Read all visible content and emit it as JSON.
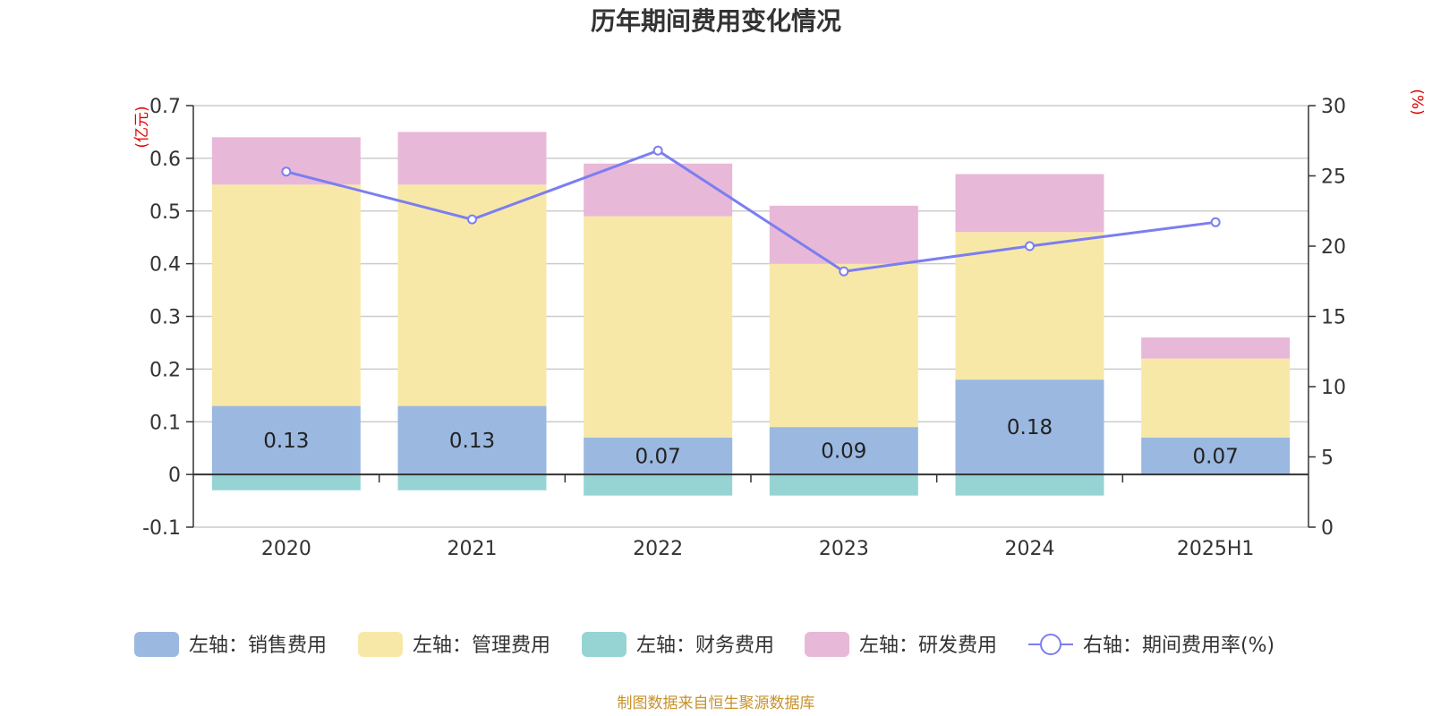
{
  "chart_data": {
    "type": "bar",
    "title": "历年期间费用变化情况",
    "left_axis_unit": "(亿元)",
    "right_axis_unit": "(%)",
    "categories": [
      "2020",
      "2021",
      "2022",
      "2023",
      "2024",
      "2025H1"
    ],
    "ylim_left": [
      -0.1,
      0.7
    ],
    "yticks_left": [
      "0.7",
      "0.6",
      "0.5",
      "0.4",
      "0.3",
      "0.2",
      "0.1",
      "0",
      "-0.1"
    ],
    "ylim_right": [
      0,
      30
    ],
    "yticks_right": [
      "30",
      "25",
      "20",
      "15",
      "10",
      "5",
      "0"
    ],
    "stacked": true,
    "grid": true,
    "legend_position": "bottom",
    "series": [
      {
        "name": "左轴：销售费用",
        "axis": "left",
        "kind": "bar",
        "color": "#9bb8e0",
        "values": [
          0.13,
          0.13,
          0.07,
          0.09,
          0.18,
          0.07
        ],
        "labels": [
          "0.13",
          "0.13",
          "0.07",
          "0.09",
          "0.18",
          "0.07"
        ]
      },
      {
        "name": "左轴：管理费用",
        "axis": "left",
        "kind": "bar",
        "color": "#f8e8a8",
        "values": [
          0.42,
          0.42,
          0.42,
          0.31,
          0.28,
          0.15
        ]
      },
      {
        "name": "左轴：财务费用",
        "axis": "left",
        "kind": "bar",
        "color": "#96d4d4",
        "values": [
          -0.03,
          -0.03,
          -0.04,
          -0.04,
          -0.04,
          0
        ]
      },
      {
        "name": "左轴：研发费用",
        "axis": "left",
        "kind": "bar",
        "color": "#e8b8d8",
        "values": [
          0.09,
          0.1,
          0.1,
          0.11,
          0.11,
          0.04
        ]
      },
      {
        "name": "右轴：期间费用率(%)",
        "axis": "right",
        "kind": "line",
        "color": "#7b7ef0",
        "values": [
          25.3,
          21.9,
          26.8,
          18.2,
          20.0,
          21.7
        ]
      }
    ],
    "source_note": "制图数据来自恒生聚源数据库"
  }
}
